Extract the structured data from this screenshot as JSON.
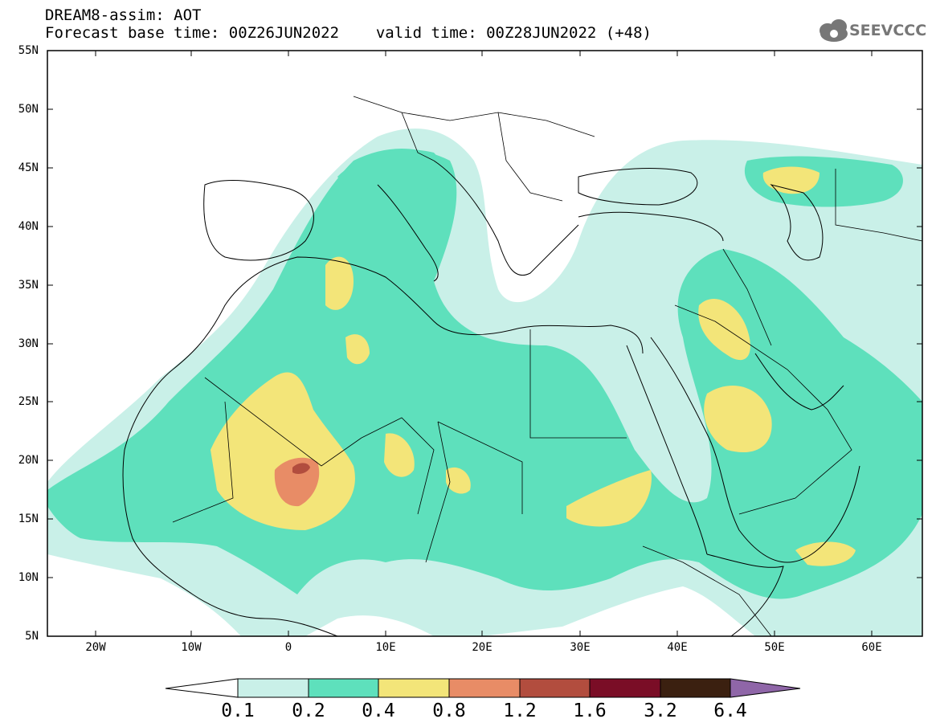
{
  "header": {
    "title": "DREAM8-assim: AOT",
    "base_time_label": "Forecast base time: 00Z26JUN2022",
    "valid_time_label": "valid time: 00Z28JUN2022 (+48)"
  },
  "logo": {
    "text": "SEEVCCC",
    "icon": "cloud-icon"
  },
  "map": {
    "lat_labels": [
      "55N",
      "50N",
      "45N",
      "40N",
      "35N",
      "30N",
      "25N",
      "20N",
      "15N",
      "10N",
      "5N"
    ],
    "lon_labels": [
      "20W",
      "10W",
      "0",
      "10E",
      "20E",
      "30E",
      "40E",
      "50E",
      "60E"
    ],
    "lon_range": [
      -25,
      65
    ],
    "lat_range": [
      5,
      55
    ],
    "land_color": "#ffffff",
    "border_color": "#000000"
  },
  "colorbar": {
    "labels": [
      "0.1",
      "0.2",
      "0.4",
      "0.8",
      "1.2",
      "1.6",
      "3.2",
      "6.4"
    ],
    "colors": [
      "#ffffff",
      "#c9f0e8",
      "#5ee0bc",
      "#f3e579",
      "#e88c66",
      "#b24d3e",
      "#7a0d26",
      "#3b2010",
      "#8f66a8"
    ]
  }
}
